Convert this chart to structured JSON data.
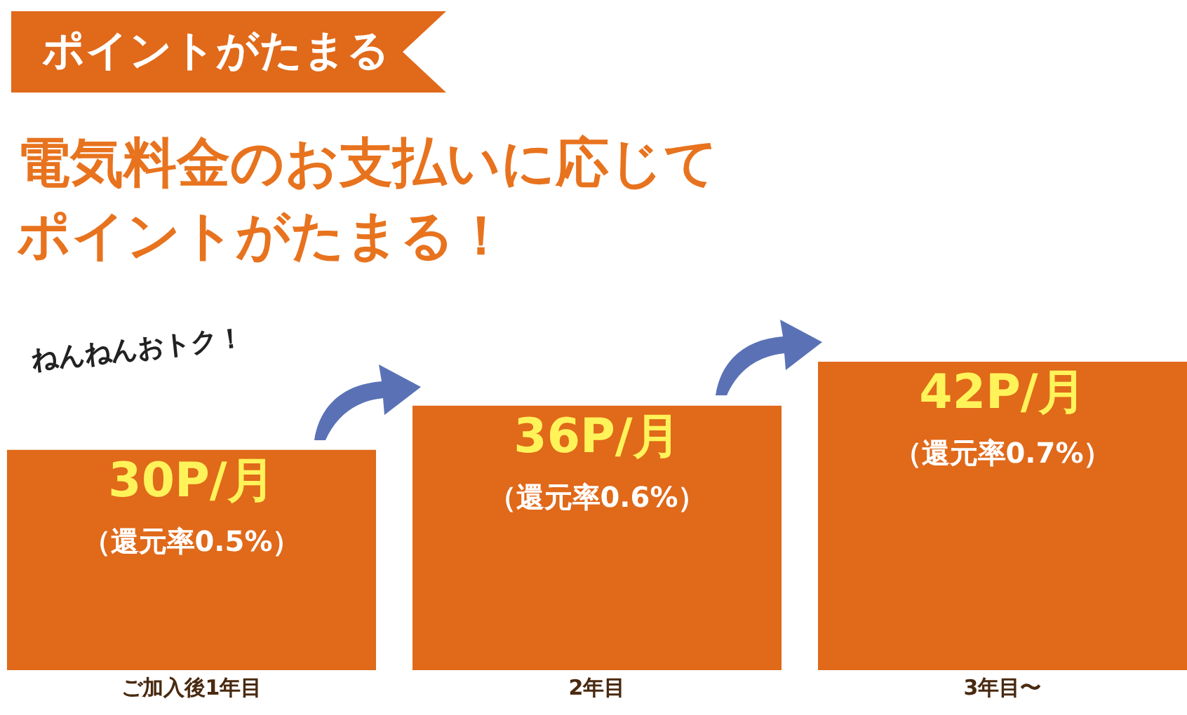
{
  "chart_data": {
    "type": "bar",
    "title": "ポイントがたまる",
    "subtitle": "電気料金のお支払いに応じてポイントがたまる！",
    "categories": [
      "ご加入後1年目",
      "2年目",
      "3年目〜"
    ],
    "values": [
      30,
      36,
      42
    ],
    "color": "#e0691a",
    "value_labels": [
      "30P/月",
      "36P/月",
      "42P/月"
    ],
    "annotations": [
      {
        "text": "（還元率0.5%）",
        "x": "ご加入後1年目",
        "y": 30
      },
      {
        "text": "（還元率0.6%）",
        "x": "2年目",
        "y": 36
      },
      {
        "text": "（還元率0.7%）",
        "x": "3年目〜",
        "y": 42
      },
      "ねんねんおトク！"
    ],
    "grid": false
  }
}
